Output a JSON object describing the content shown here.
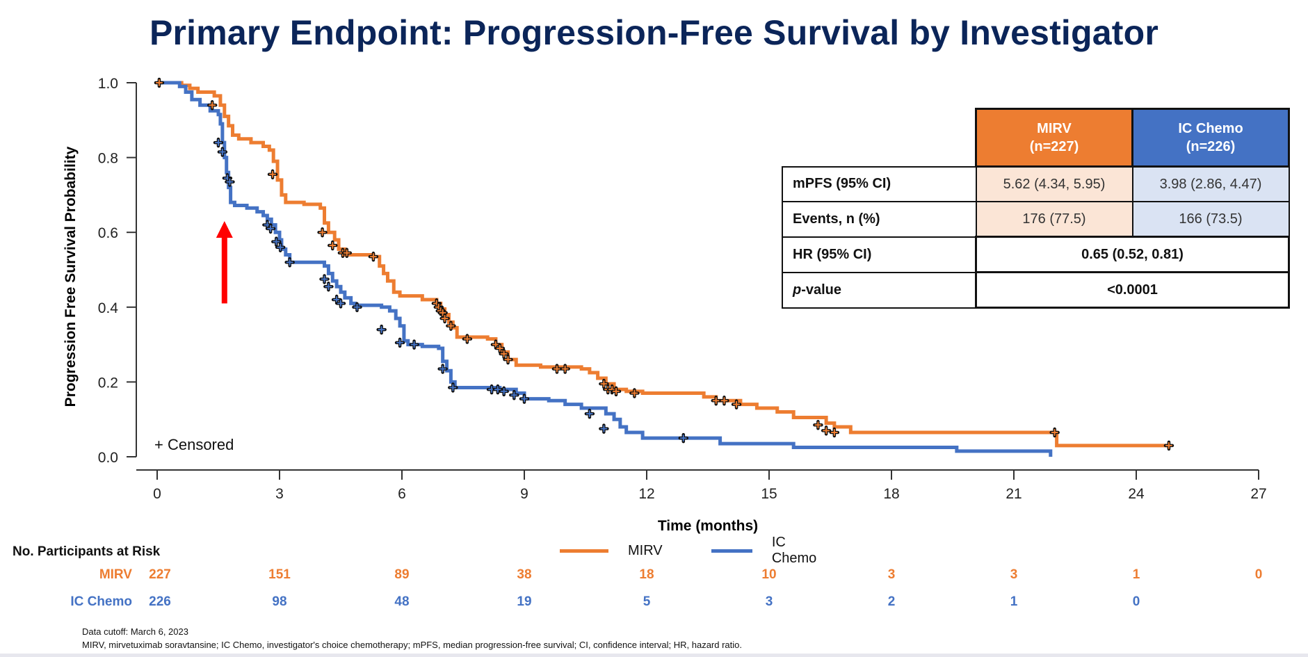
{
  "title": "Primary Endpoint: Progression-Free Survival by Investigator",
  "colors": {
    "mirv": "#ed7d31",
    "ic_chemo": "#4472c4",
    "title": "#0b2559",
    "annotation_arrow": "#ff0000"
  },
  "chart_data": {
    "type": "line",
    "subtype": "kaplan-meier",
    "title": "Primary Endpoint: Progression-Free Survival by Investigator",
    "xlabel": "Time (months)",
    "ylabel": "Progression Free Survival Probability",
    "xlim": [
      0,
      27
    ],
    "ylim": [
      0,
      1.0
    ],
    "x_ticks": [
      0,
      3,
      6,
      9,
      12,
      15,
      18,
      21,
      24,
      27
    ],
    "y_ticks": [
      0.0,
      0.2,
      0.4,
      0.6,
      0.8,
      1.0
    ],
    "x_tick_labels": [
      "0",
      "3",
      "6",
      "9",
      "12",
      "15",
      "18",
      "21",
      "24",
      "27"
    ],
    "y_tick_labels": [
      "0.0",
      "0.2",
      "0.4",
      "0.6",
      "0.8",
      "1.0"
    ],
    "grid": false,
    "legend_position": "bottom-center",
    "censored_label": "Censored",
    "censored_marker": "+",
    "annotations": [
      {
        "type": "arrow",
        "color": "#ff0000",
        "direction": "up",
        "x": 1.65,
        "y_from": 0.41,
        "y_to": 0.63
      }
    ],
    "series": [
      {
        "name": "MIRV",
        "color": "#ed7d31",
        "steps": [
          [
            0,
            1.0
          ],
          [
            0.6,
            0.993
          ],
          [
            0.8,
            0.985
          ],
          [
            1.0,
            0.975
          ],
          [
            1.4,
            0.965
          ],
          [
            1.55,
            0.94
          ],
          [
            1.65,
            0.91
          ],
          [
            1.75,
            0.885
          ],
          [
            1.85,
            0.86
          ],
          [
            2.0,
            0.85
          ],
          [
            2.3,
            0.84
          ],
          [
            2.6,
            0.83
          ],
          [
            2.75,
            0.82
          ],
          [
            2.85,
            0.79
          ],
          [
            2.95,
            0.74
          ],
          [
            3.05,
            0.7
          ],
          [
            3.15,
            0.68
          ],
          [
            3.6,
            0.675
          ],
          [
            4.0,
            0.665
          ],
          [
            4.1,
            0.625
          ],
          [
            4.2,
            0.6
          ],
          [
            4.35,
            0.58
          ],
          [
            4.45,
            0.555
          ],
          [
            4.6,
            0.54
          ],
          [
            5.3,
            0.535
          ],
          [
            5.45,
            0.51
          ],
          [
            5.55,
            0.49
          ],
          [
            5.65,
            0.47
          ],
          [
            5.8,
            0.44
          ],
          [
            5.95,
            0.43
          ],
          [
            6.5,
            0.42
          ],
          [
            6.85,
            0.41
          ],
          [
            6.95,
            0.395
          ],
          [
            7.05,
            0.38
          ],
          [
            7.15,
            0.36
          ],
          [
            7.25,
            0.345
          ],
          [
            7.35,
            0.32
          ],
          [
            8.1,
            0.315
          ],
          [
            8.3,
            0.3
          ],
          [
            8.45,
            0.28
          ],
          [
            8.6,
            0.26
          ],
          [
            8.8,
            0.245
          ],
          [
            9.4,
            0.24
          ],
          [
            10.4,
            0.235
          ],
          [
            10.6,
            0.225
          ],
          [
            10.8,
            0.21
          ],
          [
            11.0,
            0.195
          ],
          [
            11.2,
            0.18
          ],
          [
            11.5,
            0.175
          ],
          [
            11.9,
            0.17
          ],
          [
            13.4,
            0.16
          ],
          [
            13.7,
            0.15
          ],
          [
            14.3,
            0.14
          ],
          [
            14.7,
            0.13
          ],
          [
            15.2,
            0.12
          ],
          [
            15.6,
            0.105
          ],
          [
            16.4,
            0.09
          ],
          [
            16.6,
            0.08
          ],
          [
            17.0,
            0.065
          ],
          [
            22.05,
            0.03
          ],
          [
            24.8,
            0.03
          ]
        ],
        "censored": [
          [
            0.05,
            1.0
          ],
          [
            1.35,
            0.94
          ],
          [
            2.83,
            0.755
          ],
          [
            4.05,
            0.6
          ],
          [
            4.3,
            0.565
          ],
          [
            4.55,
            0.545
          ],
          [
            4.65,
            0.545
          ],
          [
            5.3,
            0.535
          ],
          [
            6.85,
            0.41
          ],
          [
            6.9,
            0.4
          ],
          [
            6.95,
            0.39
          ],
          [
            7.0,
            0.385
          ],
          [
            7.05,
            0.37
          ],
          [
            7.2,
            0.35
          ],
          [
            7.6,
            0.315
          ],
          [
            8.3,
            0.3
          ],
          [
            8.4,
            0.29
          ],
          [
            8.5,
            0.275
          ],
          [
            8.6,
            0.26
          ],
          [
            9.8,
            0.235
          ],
          [
            10.0,
            0.235
          ],
          [
            10.95,
            0.195
          ],
          [
            11.05,
            0.18
          ],
          [
            11.15,
            0.18
          ],
          [
            11.25,
            0.175
          ],
          [
            11.7,
            0.17
          ],
          [
            13.7,
            0.15
          ],
          [
            13.9,
            0.15
          ],
          [
            14.2,
            0.14
          ],
          [
            16.2,
            0.085
          ],
          [
            16.4,
            0.07
          ],
          [
            16.6,
            0.065
          ],
          [
            22.0,
            0.065
          ],
          [
            24.8,
            0.03
          ]
        ]
      },
      {
        "name": "IC Chemo",
        "color": "#4472c4",
        "steps": [
          [
            0,
            1.0
          ],
          [
            0.55,
            0.99
          ],
          [
            0.7,
            0.975
          ],
          [
            0.85,
            0.955
          ],
          [
            1.05,
            0.94
          ],
          [
            1.3,
            0.925
          ],
          [
            1.5,
            0.915
          ],
          [
            1.55,
            0.89
          ],
          [
            1.6,
            0.84
          ],
          [
            1.65,
            0.8
          ],
          [
            1.7,
            0.76
          ],
          [
            1.75,
            0.72
          ],
          [
            1.8,
            0.68
          ],
          [
            1.9,
            0.672
          ],
          [
            2.2,
            0.665
          ],
          [
            2.45,
            0.655
          ],
          [
            2.6,
            0.645
          ],
          [
            2.7,
            0.635
          ],
          [
            2.8,
            0.62
          ],
          [
            2.9,
            0.6
          ],
          [
            3.0,
            0.58
          ],
          [
            3.05,
            0.555
          ],
          [
            3.15,
            0.54
          ],
          [
            3.25,
            0.52
          ],
          [
            4.1,
            0.51
          ],
          [
            4.2,
            0.49
          ],
          [
            4.3,
            0.47
          ],
          [
            4.4,
            0.455
          ],
          [
            4.5,
            0.44
          ],
          [
            4.6,
            0.425
          ],
          [
            4.75,
            0.41
          ],
          [
            4.85,
            0.405
          ],
          [
            5.5,
            0.4
          ],
          [
            5.7,
            0.39
          ],
          [
            5.85,
            0.37
          ],
          [
            5.95,
            0.35
          ],
          [
            6.05,
            0.31
          ],
          [
            6.15,
            0.3
          ],
          [
            6.5,
            0.295
          ],
          [
            6.9,
            0.29
          ],
          [
            7.0,
            0.255
          ],
          [
            7.1,
            0.23
          ],
          [
            7.2,
            0.2
          ],
          [
            7.3,
            0.185
          ],
          [
            8.4,
            0.18
          ],
          [
            8.8,
            0.17
          ],
          [
            9.0,
            0.155
          ],
          [
            9.6,
            0.15
          ],
          [
            10.0,
            0.14
          ],
          [
            10.4,
            0.13
          ],
          [
            11.0,
            0.115
          ],
          [
            11.2,
            0.1
          ],
          [
            11.35,
            0.08
          ],
          [
            11.5,
            0.065
          ],
          [
            11.9,
            0.05
          ],
          [
            13.8,
            0.035
          ],
          [
            15.6,
            0.025
          ],
          [
            19.6,
            0.015
          ],
          [
            21.9,
            0.0
          ]
        ],
        "censored": [
          [
            1.5,
            0.84
          ],
          [
            1.6,
            0.815
          ],
          [
            1.72,
            0.745
          ],
          [
            1.78,
            0.735
          ],
          [
            2.7,
            0.62
          ],
          [
            2.78,
            0.61
          ],
          [
            2.92,
            0.575
          ],
          [
            3.02,
            0.56
          ],
          [
            3.25,
            0.52
          ],
          [
            4.1,
            0.475
          ],
          [
            4.2,
            0.455
          ],
          [
            4.4,
            0.42
          ],
          [
            4.5,
            0.41
          ],
          [
            4.9,
            0.4
          ],
          [
            5.5,
            0.34
          ],
          [
            5.95,
            0.305
          ],
          [
            6.3,
            0.3
          ],
          [
            7.0,
            0.235
          ],
          [
            7.25,
            0.185
          ],
          [
            8.2,
            0.18
          ],
          [
            8.35,
            0.18
          ],
          [
            8.5,
            0.175
          ],
          [
            8.75,
            0.165
          ],
          [
            9.0,
            0.155
          ],
          [
            10.6,
            0.115
          ],
          [
            10.95,
            0.075
          ],
          [
            12.9,
            0.05
          ]
        ]
      }
    ],
    "number_at_risk": {
      "title": "No. Participants  at Risk",
      "times": [
        0,
        3,
        6,
        9,
        12,
        15,
        18,
        21,
        24,
        27
      ],
      "rows": [
        {
          "name": "MIRV",
          "values": [
            "227",
            "151",
            "89",
            "38",
            "18",
            "10",
            "3",
            "3",
            "1",
            "0"
          ]
        },
        {
          "name": "IC Chemo",
          "values": [
            "226",
            "98",
            "48",
            "19",
            "5",
            "3",
            "2",
            "1",
            "0",
            ""
          ]
        }
      ]
    }
  },
  "legend": [
    {
      "name": "MIRV",
      "color": "#ed7d31"
    },
    {
      "name": "IC Chemo",
      "color": "#4472c4"
    }
  ],
  "stats_table": {
    "columns": [
      {
        "label": "MIRV",
        "sublabel": "(n=227)"
      },
      {
        "label": "IC Chemo",
        "sublabel": "(n=226)"
      }
    ],
    "rows": [
      {
        "label": "mPFS (95% CI)",
        "mirv": "5.62 (4.34, 5.95)",
        "ic_chemo": "3.98 (2.86, 4.47)"
      },
      {
        "label": "Events, n (%)",
        "mirv": "176 (77.5)",
        "ic_chemo": "166 (73.5)"
      }
    ],
    "merged_rows": [
      {
        "label": "HR (95% CI)",
        "value": "0.65 (0.52, 0.81)"
      },
      {
        "label_italic": "p",
        "label_rest": "-value",
        "value": "<0.0001"
      }
    ]
  },
  "footnotes": {
    "cutoff": "Data cutoff: March 6, 2023",
    "abbreviations": "MIRV, mirvetuximab  soravtansine;  IC Chemo, investigator's  choice chemotherapy;  mPFS, median progression-free survival;  CI, confidence interval;  HR, hazard ratio."
  }
}
